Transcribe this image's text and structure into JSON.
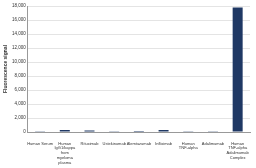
{
  "chart_data": {
    "type": "bar",
    "y_label": "Fluorescence signal",
    "categories": [
      "Human Serum",
      "Human IgG1/kappa from myeloma plasma",
      "Rituximab",
      "Ustekinumab",
      "Alemtuzumab",
      "Infliximab",
      "Human TNF-alpha",
      "Adalimumab",
      "Human TNF-alpha Adalimumab Complex"
    ],
    "values": [
      100,
      300,
      200,
      100,
      150,
      300,
      100,
      100,
      17800
    ],
    "color": "#1f3864",
    "ylim": [
      0,
      18000
    ],
    "yticks": [
      0,
      {
        "value": 2000,
        "label": "2,000"
      },
      {
        "value": 4000,
        "label": "4,000"
      },
      {
        "value": 6000,
        "label": "6,000"
      },
      {
        "value": 8000,
        "label": "8,000"
      },
      {
        "value": 10000,
        "label": "10,000"
      },
      {
        "value": 12000,
        "label": "12,000"
      },
      {
        "value": 14000,
        "label": "14,000"
      },
      {
        "value": 16000,
        "label": "16,000"
      },
      {
        "value": 18000,
        "label": "18,000"
      }
    ],
    "grid": true
  }
}
